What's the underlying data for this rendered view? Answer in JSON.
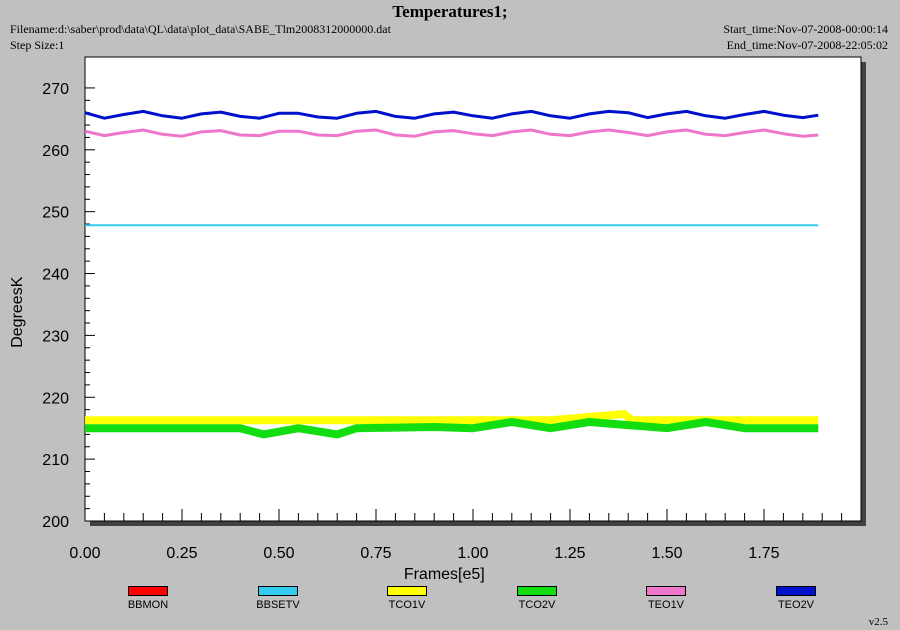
{
  "header": {
    "title": "Temperatures1;",
    "filename": "Filename:d:\\saber\\prod\\data\\QL\\data\\plot_data\\SABE_Tlm2008312000000.dat",
    "step_size": "Step Size:1",
    "start_time": "Start_time:Nov-07-2008-00:00:14",
    "end_time": "End_time:Nov-07-2008-22:05:02"
  },
  "version": "v2.5",
  "chart_data": {
    "type": "line",
    "xlabel": "Frames[e5]",
    "ylabel": "DegreesK",
    "xlim": [
      0,
      2.0
    ],
    "ylim": [
      200,
      275
    ],
    "xticks": [
      "0.00",
      "0.25",
      "0.50",
      "0.75",
      "1.00",
      "1.25",
      "1.50",
      "1.75"
    ],
    "yticks": [
      "200",
      "210",
      "220",
      "230",
      "240",
      "250",
      "260",
      "270"
    ],
    "background": "#ffffff",
    "series": [
      {
        "name": "BBMON",
        "color": "#ff0000",
        "x": [],
        "y": []
      },
      {
        "name": "BBSETV",
        "color": "#33ccee",
        "x": [
          0.0,
          0.5,
          1.0,
          1.5,
          1.89
        ],
        "y": [
          247.8,
          247.8,
          247.8,
          247.8,
          247.8
        ]
      },
      {
        "name": "TCO1V",
        "color": "#ffff00",
        "x": [
          0.0,
          0.2,
          0.4,
          0.6,
          0.8,
          1.0,
          1.2,
          1.39,
          1.41,
          1.6,
          1.8,
          1.89
        ],
        "y": [
          216.3,
          216.3,
          216.3,
          216.3,
          216.3,
          216.3,
          216.3,
          217.3,
          216.3,
          216.3,
          216.3,
          216.3
        ]
      },
      {
        "name": "TCO2V",
        "color": "#11dd11",
        "x": [
          0.0,
          0.2,
          0.4,
          0.46,
          0.55,
          0.65,
          0.7,
          0.9,
          1.0,
          1.1,
          1.2,
          1.3,
          1.4,
          1.5,
          1.6,
          1.7,
          1.89
        ],
        "y": [
          215.0,
          215.0,
          215.0,
          214.0,
          215.0,
          214.0,
          215.0,
          215.2,
          215.0,
          216.0,
          215.0,
          216.0,
          215.5,
          215.0,
          216.0,
          215.0,
          215.0
        ]
      },
      {
        "name": "TEO1V",
        "color": "#ee77cc",
        "x": [
          0.0,
          0.05,
          0.1,
          0.15,
          0.2,
          0.25,
          0.3,
          0.35,
          0.4,
          0.45,
          0.5,
          0.55,
          0.6,
          0.65,
          0.7,
          0.75,
          0.8,
          0.85,
          0.9,
          0.95,
          1.0,
          1.05,
          1.1,
          1.15,
          1.2,
          1.25,
          1.3,
          1.35,
          1.4,
          1.45,
          1.5,
          1.55,
          1.6,
          1.65,
          1.7,
          1.75,
          1.8,
          1.85,
          1.89
        ],
        "y": [
          263.0,
          262.3,
          262.8,
          263.2,
          262.5,
          262.2,
          262.9,
          263.1,
          262.4,
          262.3,
          263.0,
          263.0,
          262.4,
          262.3,
          263.0,
          263.2,
          262.4,
          262.2,
          262.9,
          263.1,
          262.6,
          262.3,
          262.9,
          263.2,
          262.5,
          262.3,
          262.9,
          263.2,
          262.8,
          262.3,
          262.9,
          263.2,
          262.5,
          262.3,
          262.8,
          263.2,
          262.6,
          262.2,
          262.4
        ]
      },
      {
        "name": "TEO2V",
        "color": "#0011cc",
        "x": [
          0.0,
          0.05,
          0.1,
          0.15,
          0.2,
          0.25,
          0.3,
          0.35,
          0.4,
          0.45,
          0.5,
          0.55,
          0.6,
          0.65,
          0.7,
          0.75,
          0.8,
          0.85,
          0.9,
          0.95,
          1.0,
          1.05,
          1.1,
          1.15,
          1.2,
          1.25,
          1.3,
          1.35,
          1.4,
          1.45,
          1.5,
          1.55,
          1.6,
          1.65,
          1.7,
          1.75,
          1.8,
          1.85,
          1.89
        ],
        "y": [
          266.0,
          265.1,
          265.7,
          266.2,
          265.5,
          265.1,
          265.8,
          266.1,
          265.4,
          265.1,
          265.9,
          265.9,
          265.3,
          265.1,
          265.9,
          266.2,
          265.4,
          265.1,
          265.8,
          266.1,
          265.5,
          265.1,
          265.8,
          266.2,
          265.5,
          265.1,
          265.8,
          266.2,
          266.0,
          265.2,
          265.8,
          266.2,
          265.5,
          265.1,
          265.7,
          266.2,
          265.6,
          265.2,
          265.6
        ]
      }
    ]
  }
}
